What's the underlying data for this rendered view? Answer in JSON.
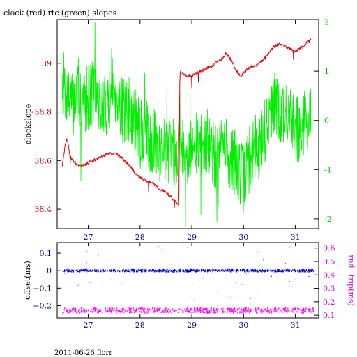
{
  "title": "clock (red) rtc (green) slopes",
  "footer": "2011-06-26 florr",
  "colors": {
    "clock": "#e00000",
    "rtc": "#00ee00",
    "offset": "#0000cc",
    "rndtrip": "#ff00ff",
    "axis_left_top": "#cc0000",
    "axis_right_top": "#00bb00",
    "axis_x": "#000088",
    "axis_right_bottom": "#dd00dd",
    "frame": "#000000"
  },
  "chart_data": [
    {
      "type": "line",
      "title": "clock (red) rtc (green) slopes",
      "ylabel": "clockslope",
      "xlim": [
        26.4,
        31.45
      ],
      "ylim": [
        38.32,
        39.18
      ],
      "y2lim": [
        -2.2,
        2.05
      ],
      "x_ticks": [
        "27",
        "28",
        "29",
        "30",
        "31"
      ],
      "y_ticks": [
        "38.4",
        "38.6",
        "38.8",
        "39"
      ],
      "y2_ticks": [
        "-2",
        "-1",
        "0",
        "1",
        "2"
      ],
      "series": [
        {
          "name": "clock",
          "axis": "left",
          "x": [
            26.5,
            26.55,
            26.58,
            26.62,
            26.65,
            26.7,
            26.8,
            26.9,
            27.0,
            27.1,
            27.2,
            27.3,
            27.4,
            27.5,
            27.6,
            27.7,
            27.8,
            27.9,
            28.0,
            28.1,
            28.2,
            28.3,
            28.4,
            28.5,
            28.6,
            28.7,
            28.75,
            28.77,
            28.8,
            28.9,
            29.0,
            29.1,
            29.2,
            29.3,
            29.4,
            29.5,
            29.6,
            29.65,
            29.7,
            29.8,
            29.85,
            29.9,
            29.95,
            30.0,
            30.1,
            30.2,
            30.3,
            30.4,
            30.5,
            30.6,
            30.7,
            30.8,
            30.9,
            31.0,
            31.1,
            31.2,
            31.3
          ],
          "y": [
            38.58,
            38.66,
            38.69,
            38.66,
            38.62,
            38.6,
            38.58,
            38.58,
            38.59,
            38.6,
            38.61,
            38.62,
            38.63,
            38.63,
            38.62,
            38.6,
            38.58,
            38.55,
            38.53,
            38.52,
            38.51,
            38.5,
            38.48,
            38.47,
            38.45,
            38.43,
            38.41,
            38.97,
            38.96,
            38.95,
            38.95,
            38.96,
            38.97,
            38.98,
            38.99,
            39.01,
            39.02,
            39.04,
            39.03,
            39.0,
            38.97,
            38.96,
            38.95,
            38.96,
            38.98,
            38.99,
            39.0,
            39.02,
            39.05,
            39.07,
            39.08,
            39.07,
            39.06,
            39.05,
            39.06,
            39.08,
            39.1
          ]
        },
        {
          "name": "rtc",
          "axis": "right",
          "x": [
            26.5,
            26.6,
            26.7,
            26.8,
            26.9,
            27.0,
            27.1,
            27.2,
            27.3,
            27.4,
            27.5,
            27.6,
            27.7,
            27.8,
            27.9,
            28.0,
            28.1,
            28.2,
            28.3,
            28.4,
            28.5,
            28.6,
            28.7,
            28.8,
            28.9,
            29.0,
            29.1,
            29.2,
            29.3,
            29.4,
            29.5,
            29.6,
            29.7,
            29.8,
            29.9,
            30.0,
            30.1,
            30.2,
            30.3,
            30.4,
            30.5,
            30.6,
            30.7,
            30.8,
            30.9,
            31.0,
            31.1,
            31.2,
            31.3
          ],
          "y": [
            0.8,
            0.5,
            0.3,
            0.6,
            0.4,
            0.5,
            0.6,
            0.4,
            0.2,
            0.5,
            0.7,
            0.4,
            0.1,
            0.2,
            0.0,
            -0.3,
            -0.2,
            -0.4,
            -0.5,
            -0.6,
            -0.5,
            -0.7,
            -0.6,
            -0.5,
            -0.6,
            -0.7,
            -0.5,
            -0.6,
            -0.4,
            -0.7,
            -0.8,
            -0.5,
            -0.7,
            -0.8,
            -1.0,
            -1.2,
            -0.8,
            -0.6,
            -0.5,
            -0.2,
            0.1,
            0.3,
            0.1,
            0.2,
            0.0,
            -0.1,
            -0.2,
            0.0,
            0.2
          ]
        }
      ]
    },
    {
      "type": "scatter",
      "ylabel": "offset(ms)",
      "y2label": "rnd−trip(ms)",
      "xlim": [
        26.4,
        31.45
      ],
      "ylim": [
        -0.27,
        0.16
      ],
      "y2lim": [
        0.08,
        0.64
      ],
      "x_ticks": [
        "27",
        "28",
        "29",
        "30",
        "31"
      ],
      "y_ticks": [
        "0.1",
        "0",
        "−0.1",
        "−0.2"
      ],
      "y2_ticks": [
        "0.6",
        "0.5",
        "0.4",
        "0.3",
        "0.2",
        "0.1"
      ],
      "series": [
        {
          "name": "offset",
          "axis": "left",
          "level": 0.0,
          "x_range": [
            26.5,
            31.35
          ]
        },
        {
          "name": "rnd-trip",
          "axis": "right",
          "level": 0.135,
          "x_range": [
            26.5,
            31.35
          ]
        }
      ]
    }
  ]
}
